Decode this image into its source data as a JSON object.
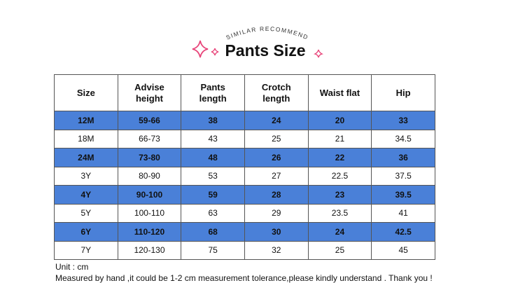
{
  "title": {
    "subtitle": "SIMILAR RECOMMEND",
    "text": "Pants Size"
  },
  "table": {
    "header": [
      "Size",
      "Advise height",
      "Pants length",
      "Crotch length",
      "Waist flat",
      "Hip"
    ],
    "rows": [
      [
        "12M",
        "59-66",
        38,
        24,
        20,
        33
      ],
      [
        "18M",
        "66-73",
        43,
        25,
        21,
        34.5
      ],
      [
        "24M",
        "73-80",
        48,
        26,
        22,
        36
      ],
      [
        "3Y",
        "80-90",
        53,
        27,
        22.5,
        37.5
      ],
      [
        "4Y",
        "90-100",
        59,
        28,
        23,
        39.5
      ],
      [
        "5Y",
        "100-110",
        63,
        29,
        23.5,
        41
      ],
      [
        "6Y",
        "110-120",
        68,
        30,
        24,
        42.5
      ],
      [
        "7Y",
        "120-130",
        75,
        32,
        25,
        45
      ]
    ]
  },
  "notes": [
    "Unit : cm",
    "Measured by hand ,it could be 1-2 cm measurement tolerance,please kindly understand . Thank you !"
  ]
}
